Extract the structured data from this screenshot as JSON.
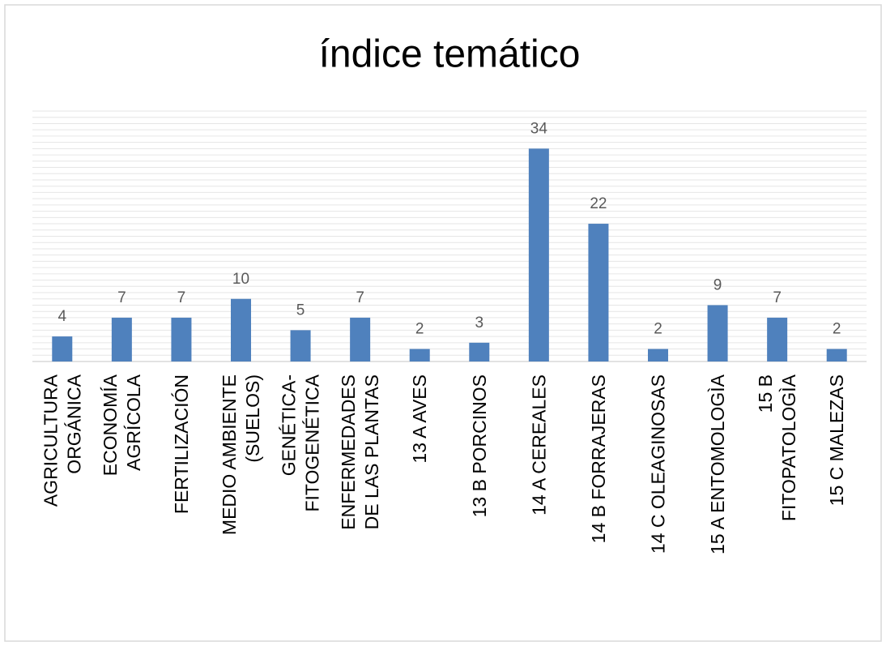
{
  "chart_data": {
    "type": "bar",
    "title": "índice temático",
    "categories": [
      "AGRICULTURA ORGÁNICA",
      "ECONOMÍA AGRÍCOLA",
      "FERTILIZACIÓN",
      "MEDIO AMBIENTE (SUELOS)",
      "GENÉTICA-FITOGENÉTICA",
      "ENFERMEDADES DE LAS PLANTAS",
      "13 A AVES",
      "13 B PORCINOS",
      "14 A CEREALES",
      "14 B FORRAJERAS",
      "14 C OLEAGINOSAS",
      "15 A ENTOMOLOGÌA",
      "15 B FITOPATOLOGÌA",
      "15 C MALEZAS"
    ],
    "values": [
      4,
      7,
      7,
      10,
      5,
      7,
      2,
      3,
      34,
      22,
      2,
      9,
      7,
      2
    ],
    "color": "#4f81bd",
    "ylim": [
      0,
      40
    ],
    "yticks": [
      0,
      1,
      2,
      3,
      4,
      5,
      6,
      7,
      8,
      9,
      10,
      11,
      12,
      13,
      14,
      15,
      16,
      17,
      18,
      19,
      20,
      21,
      22,
      23,
      24,
      25,
      26,
      27,
      28,
      29,
      30,
      31,
      32,
      33,
      34,
      35,
      36,
      37,
      38,
      39,
      40
    ],
    "grid": true
  }
}
